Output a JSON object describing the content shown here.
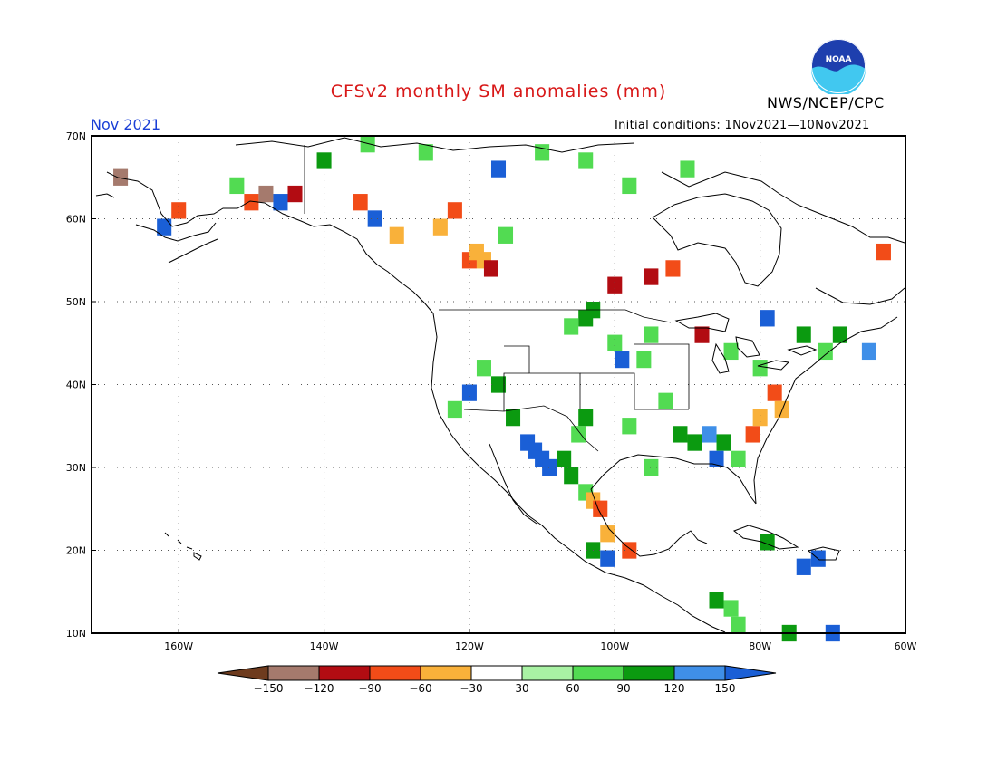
{
  "title": "CFSv2 monthly SM anomalies (mm)",
  "date_label": "Nov 2021",
  "initial_conditions": "Initial conditions: 1Nov2021—10Nov2021",
  "agency": "NWS/NCEP/CPC",
  "logo_text": "NOAA",
  "map": {
    "lon_range": [
      -172,
      -60
    ],
    "lat_range": [
      10,
      70
    ],
    "lat_ticks": [
      {
        "value": 70,
        "label": "70N"
      },
      {
        "value": 60,
        "label": "60N"
      },
      {
        "value": 50,
        "label": "50N"
      },
      {
        "value": 40,
        "label": "40N"
      },
      {
        "value": 30,
        "label": "30N"
      },
      {
        "value": 20,
        "label": "20N"
      },
      {
        "value": 10,
        "label": "10N"
      }
    ],
    "lon_ticks": [
      {
        "value": -160,
        "label": "160W"
      },
      {
        "value": -140,
        "label": "140W"
      },
      {
        "value": -120,
        "label": "120W"
      },
      {
        "value": -100,
        "label": "100W"
      },
      {
        "value": -80,
        "label": "80W"
      },
      {
        "value": -60,
        "label": "60W"
      }
    ],
    "grid": "dotted",
    "land_color": "#ffffff",
    "outline_color": "#000000"
  },
  "colorbar": {
    "labels": [
      "−150",
      "−120",
      "−90",
      "−60",
      "−30",
      "30",
      "60",
      "90",
      "120",
      "150"
    ],
    "colors": [
      "#6e3b1e",
      "#a57a6d",
      "#b20c12",
      "#f24c18",
      "#f9b13a",
      "#ffffff",
      "#a9f2a4",
      "#52db52",
      "#0b9a10",
      "#3f8fe8",
      "#1a5fd6"
    ]
  },
  "anomaly_cells": [
    {
      "lon": -120,
      "lat": 55,
      "mm": -90
    },
    {
      "lon": -118,
      "lat": 55,
      "mm": -60
    },
    {
      "lon": -117,
      "lat": 54,
      "mm": -120
    },
    {
      "lon": -119,
      "lat": 56,
      "mm": -60
    },
    {
      "lon": -121,
      "lat": 57,
      "mm": -30
    },
    {
      "lon": -124,
      "lat": 59,
      "mm": -60
    },
    {
      "lon": -122,
      "lat": 61,
      "mm": -90
    },
    {
      "lon": -115,
      "lat": 58,
      "mm": 60
    },
    {
      "lon": -110,
      "lat": 52,
      "mm": -30
    },
    {
      "lon": -106,
      "lat": 52,
      "mm": -30
    },
    {
      "lon": -103,
      "lat": 49,
      "mm": 90
    },
    {
      "lon": -104,
      "lat": 48,
      "mm": 90
    },
    {
      "lon": -106,
      "lat": 47,
      "mm": 60
    },
    {
      "lon": -100,
      "lat": 45,
      "mm": 60
    },
    {
      "lon": -99,
      "lat": 43,
      "mm": 150
    },
    {
      "lon": -96,
      "lat": 43,
      "mm": 60
    },
    {
      "lon": -118,
      "lat": 42,
      "mm": 60
    },
    {
      "lon": -116,
      "lat": 40,
      "mm": 90
    },
    {
      "lon": -120,
      "lat": 39,
      "mm": 150
    },
    {
      "lon": -122,
      "lat": 37,
      "mm": 60
    },
    {
      "lon": -114,
      "lat": 36,
      "mm": 90
    },
    {
      "lon": -112,
      "lat": 33,
      "mm": 150
    },
    {
      "lon": -111,
      "lat": 32,
      "mm": 150
    },
    {
      "lon": -110,
      "lat": 31,
      "mm": 150
    },
    {
      "lon": -109,
      "lat": 30,
      "mm": 150
    },
    {
      "lon": -107,
      "lat": 31,
      "mm": 90
    },
    {
      "lon": -105,
      "lat": 34,
      "mm": 60
    },
    {
      "lon": -104,
      "lat": 36,
      "mm": 90
    },
    {
      "lon": -106,
      "lat": 29,
      "mm": 90
    },
    {
      "lon": -104,
      "lat": 27,
      "mm": 60
    },
    {
      "lon": -103,
      "lat": 26,
      "mm": -60
    },
    {
      "lon": -102,
      "lat": 25,
      "mm": -90
    },
    {
      "lon": -101,
      "lat": 22,
      "mm": -60
    },
    {
      "lon": -103,
      "lat": 20,
      "mm": 90
    },
    {
      "lon": -101,
      "lat": 19,
      "mm": 150
    },
    {
      "lon": -98,
      "lat": 20,
      "mm": -90
    },
    {
      "lon": -99,
      "lat": 33,
      "mm": -30
    },
    {
      "lon": -98,
      "lat": 35,
      "mm": 60
    },
    {
      "lon": -95,
      "lat": 30,
      "mm": 60
    },
    {
      "lon": -93,
      "lat": 38,
      "mm": 60
    },
    {
      "lon": -91,
      "lat": 34,
      "mm": 90
    },
    {
      "lon": -89,
      "lat": 33,
      "mm": 90
    },
    {
      "lon": -87,
      "lat": 34,
      "mm": 120
    },
    {
      "lon": -85,
      "lat": 33,
      "mm": 90
    },
    {
      "lon": -86,
      "lat": 31,
      "mm": 150
    },
    {
      "lon": -83,
      "lat": 31,
      "mm": 60
    },
    {
      "lon": -81,
      "lat": 34,
      "mm": -90
    },
    {
      "lon": -80,
      "lat": 36,
      "mm": -60
    },
    {
      "lon": -78,
      "lat": 39,
      "mm": -90
    },
    {
      "lon": -77,
      "lat": 37,
      "mm": -60
    },
    {
      "lon": -80,
      "lat": 42,
      "mm": 60
    },
    {
      "lon": -84,
      "lat": 44,
      "mm": 60
    },
    {
      "lon": -88,
      "lat": 42,
      "mm": -30
    },
    {
      "lon": -92,
      "lat": 44,
      "mm": -30
    },
    {
      "lon": -95,
      "lat": 46,
      "mm": 60
    },
    {
      "lon": -88,
      "lat": 46,
      "mm": -120
    },
    {
      "lon": -79,
      "lat": 48,
      "mm": 150
    },
    {
      "lon": -74,
      "lat": 46,
      "mm": 90
    },
    {
      "lon": -71,
      "lat": 44,
      "mm": 60
    },
    {
      "lon": -69,
      "lat": 46,
      "mm": 90
    },
    {
      "lon": -65,
      "lat": 44,
      "mm": 120
    },
    {
      "lon": -75,
      "lat": 52,
      "mm": -30
    },
    {
      "lon": -72,
      "lat": 53,
      "mm": -30
    },
    {
      "lon": -66,
      "lat": 55,
      "mm": -30
    },
    {
      "lon": -63,
      "lat": 56,
      "mm": -90
    },
    {
      "lon": -95,
      "lat": 53,
      "mm": -120
    },
    {
      "lon": -92,
      "lat": 54,
      "mm": -90
    },
    {
      "lon": -100,
      "lat": 52,
      "mm": -120
    },
    {
      "lon": -98,
      "lat": 64,
      "mm": 60
    },
    {
      "lon": -90,
      "lat": 66,
      "mm": 60
    },
    {
      "lon": -104,
      "lat": 67,
      "mm": 60
    },
    {
      "lon": -110,
      "lat": 68,
      "mm": 60
    },
    {
      "lon": -126,
      "lat": 68,
      "mm": 60
    },
    {
      "lon": -134,
      "lat": 69,
      "mm": 60
    },
    {
      "lon": -116,
      "lat": 66,
      "mm": 150
    },
    {
      "lon": -150,
      "lat": 62,
      "mm": -90
    },
    {
      "lon": -148,
      "lat": 63,
      "mm": -150
    },
    {
      "lon": -146,
      "lat": 62,
      "mm": 150
    },
    {
      "lon": -144,
      "lat": 63,
      "mm": -120
    },
    {
      "lon": -152,
      "lat": 64,
      "mm": 60
    },
    {
      "lon": -160,
      "lat": 61,
      "mm": -90
    },
    {
      "lon": -162,
      "lat": 59,
      "mm": 150
    },
    {
      "lon": -168,
      "lat": 65,
      "mm": -150
    },
    {
      "lon": -140,
      "lat": 67,
      "mm": 90
    },
    {
      "lon": -135,
      "lat": 62,
      "mm": -90
    },
    {
      "lon": -133,
      "lat": 60,
      "mm": 150
    },
    {
      "lon": -130,
      "lat": 58,
      "mm": -60
    },
    {
      "lon": -79,
      "lat": 21,
      "mm": 90
    },
    {
      "lon": -74,
      "lat": 18,
      "mm": 150
    },
    {
      "lon": -72,
      "lat": 19,
      "mm": 150
    },
    {
      "lon": -84,
      "lat": 13,
      "mm": 60
    },
    {
      "lon": -86,
      "lat": 14,
      "mm": 90
    },
    {
      "lon": -83,
      "lat": 11,
      "mm": 60
    },
    {
      "lon": -76,
      "lat": 10,
      "mm": 90
    },
    {
      "lon": -70,
      "lat": 10,
      "mm": 150
    }
  ]
}
